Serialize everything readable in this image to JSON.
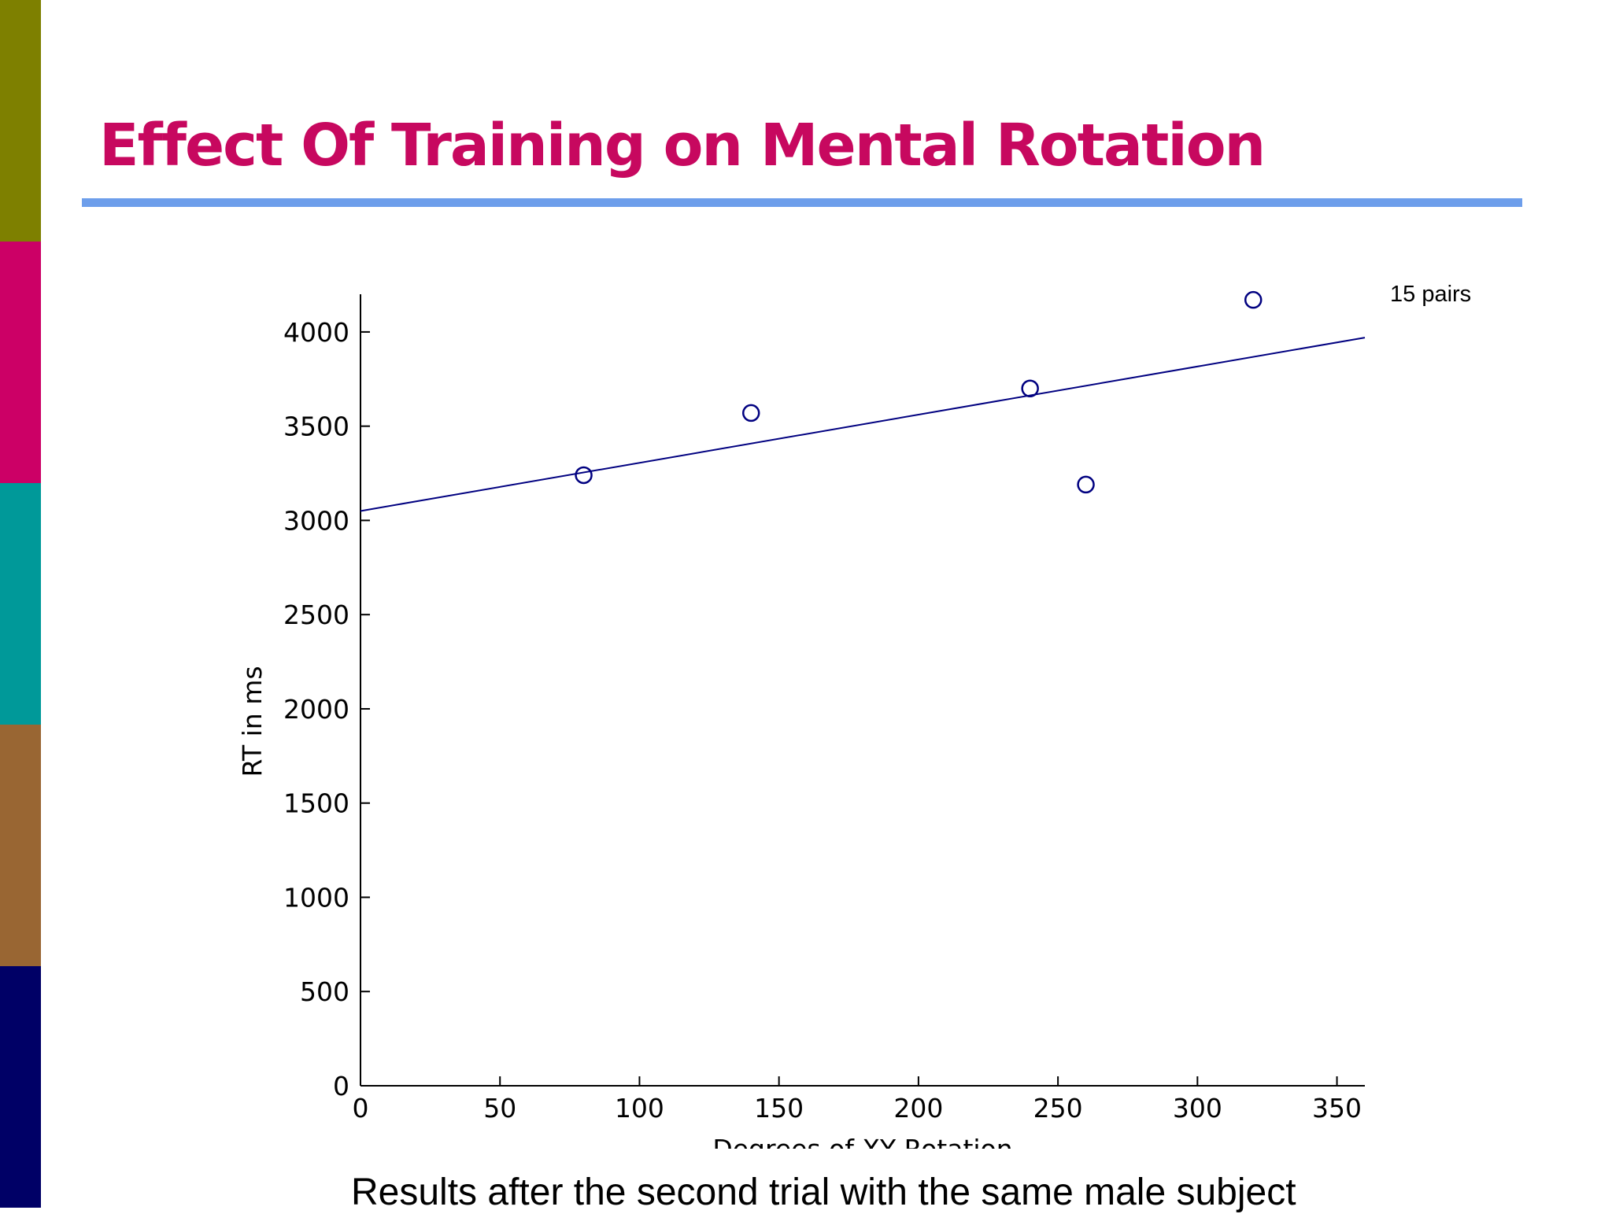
{
  "slide": {
    "title": "Effect Of Training on Mental Rotation",
    "title_color": "#c7085f",
    "rule_color": "#6d9eeb",
    "caption": "Results after the second trial with the same male subject",
    "side_bar_colors": [
      "#7e8000",
      "#cc0066",
      "#009999",
      "#996633",
      "#000066"
    ]
  },
  "chart_data": {
    "type": "scatter",
    "title": "",
    "xlabel": "Degrees of XY Rotation",
    "ylabel": "RT in ms",
    "xlim": [
      0,
      360
    ],
    "ylim": [
      0,
      4200
    ],
    "xticks": [
      0,
      50,
      100,
      150,
      200,
      250,
      300,
      350
    ],
    "yticks": [
      0,
      500,
      1000,
      1500,
      2000,
      2500,
      3000,
      3500,
      4000
    ],
    "grid": false,
    "points": [
      {
        "x": 80,
        "y": 3240
      },
      {
        "x": 140,
        "y": 3570
      },
      {
        "x": 240,
        "y": 3700
      },
      {
        "x": 260,
        "y": 3190
      },
      {
        "x": 320,
        "y": 4170
      }
    ],
    "fit_line": {
      "x": [
        0,
        360
      ],
      "y": [
        3050,
        3970
      ]
    },
    "annotation": "15 pairs",
    "color": "#000080"
  }
}
